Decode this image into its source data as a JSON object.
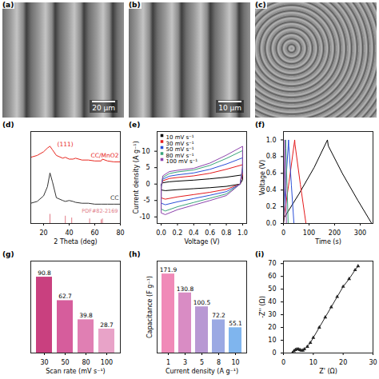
{
  "chart_data": [
    {
      "type": "image",
      "title": "(a)",
      "annotations": [
        {
          "text": "20 μm"
        }
      ]
    },
    {
      "type": "image",
      "title": "(b)",
      "annotations": [
        {
          "text": "10 μm"
        }
      ]
    },
    {
      "type": "image",
      "title": "(c)"
    },
    {
      "type": "line",
      "title": "(d)",
      "x_label": "2 Theta (deg)",
      "xlim": [
        10,
        80
      ],
      "xticks": [
        20,
        40,
        60,
        80
      ],
      "ylim": [
        0,
        100
      ],
      "tick_labels": "x",
      "series": [
        {
          "name": "CC/MnO2",
          "color": "#e8271f",
          "x": [
            10,
            15,
            20,
            23,
            25,
            27,
            30,
            35,
            37,
            40,
            43,
            45,
            50,
            55,
            60,
            65,
            66,
            70,
            75,
            80
          ],
          "values": [
            72,
            74,
            78,
            82,
            84,
            80,
            74,
            71,
            72,
            70,
            70,
            71,
            69,
            69,
            68,
            68,
            70,
            68,
            67,
            67
          ]
        },
        {
          "name": "CC",
          "color": "#333333",
          "x": [
            10,
            15,
            20,
            23,
            25,
            27,
            30,
            35,
            37,
            40,
            43,
            45,
            50,
            55,
            60,
            65,
            66,
            70,
            75,
            80
          ],
          "values": [
            22,
            24,
            30,
            40,
            55,
            45,
            28,
            25,
            24,
            25,
            24,
            23,
            22,
            22,
            21,
            21,
            21,
            21,
            21,
            21
          ]
        }
      ],
      "reference": {
        "name": "PDF#82-2169",
        "color": "#e07a86",
        "x": [
          25,
          37,
          42,
          56,
          65,
          66
        ],
        "values": [
          10,
          8,
          6,
          5,
          4,
          5
        ]
      },
      "annotations": [
        {
          "text": "(111)",
          "x": 37,
          "y": 86,
          "color": "#e8271f"
        }
      ]
    },
    {
      "type": "line",
      "title": "(e)",
      "x_label": "Voltage (V)",
      "y_label": "Current density (A g⁻¹)",
      "xlim": [
        -0.05,
        1.05
      ],
      "xticks": [
        {
          "value": 0,
          "label": "0.0"
        },
        {
          "value": 0.2,
          "label": "0.2"
        },
        {
          "value": 0.4,
          "label": "0.4"
        },
        {
          "value": 0.6,
          "label": "0.6"
        },
        {
          "value": 0.8,
          "label": "0.8"
        },
        {
          "value": 1,
          "label": "1.0"
        }
      ],
      "ylim": [
        -12,
        16
      ],
      "yticks": [
        -10,
        -5,
        0,
        5,
        10
      ],
      "legend": "top-left",
      "series": [
        {
          "name": "10 mV s⁻¹",
          "color": "#000000",
          "x": [
            0,
            0.02,
            0.1,
            0.2,
            0.4,
            0.6,
            0.8,
            1.0,
            1.0,
            0.97,
            0.8,
            0.6,
            0.4,
            0.2,
            0.05,
            0,
            0
          ],
          "values": [
            -0.2,
            0.4,
            0.7,
            0.9,
            1.2,
            1.6,
            2.1,
            2.8,
            1.3,
            0,
            -0.7,
            -1.1,
            -1.4,
            -1.7,
            -2.0,
            -1.8,
            -0.2
          ]
        },
        {
          "name": "30 mV s⁻¹",
          "color": "#e41a1c",
          "x": [
            0,
            0.02,
            0.1,
            0.2,
            0.4,
            0.6,
            0.8,
            1.0,
            1.0,
            0.97,
            0.8,
            0.6,
            0.4,
            0.2,
            0.05,
            0,
            0
          ],
          "values": [
            -0.4,
            1.0,
            1.7,
            2.0,
            2.5,
            3.3,
            4.5,
            5.9,
            2.8,
            0,
            -1.6,
            -2.5,
            -3.2,
            -3.9,
            -4.6,
            -4.2,
            -0.4
          ]
        },
        {
          "name": "50 mV s⁻¹",
          "color": "#2b4fd8",
          "x": [
            0,
            0.02,
            0.1,
            0.2,
            0.4,
            0.6,
            0.8,
            1.0,
            1.0,
            0.97,
            0.8,
            0.6,
            0.4,
            0.2,
            0.05,
            0,
            0
          ],
          "values": [
            -0.6,
            1.5,
            2.4,
            2.8,
            3.4,
            4.5,
            6.1,
            8.0,
            3.8,
            0,
            -2.3,
            -3.4,
            -4.4,
            -5.4,
            -6.3,
            -5.8,
            -0.6
          ]
        },
        {
          "name": "80 mV s⁻¹",
          "color": "#3aa57a",
          "x": [
            0,
            0.02,
            0.1,
            0.2,
            0.4,
            0.6,
            0.8,
            1.0,
            1.0,
            0.97,
            0.8,
            0.6,
            0.4,
            0.2,
            0.05,
            0,
            0
          ],
          "values": [
            -0.8,
            2.0,
            3.2,
            3.7,
            4.3,
            5.7,
            7.8,
            10.2,
            4.8,
            0,
            -3.0,
            -4.3,
            -5.6,
            -6.9,
            -8.2,
            -7.6,
            -0.8
          ]
        },
        {
          "name": "100 mV s⁻¹",
          "color": "#8e44ad",
          "x": [
            0,
            0.02,
            0.1,
            0.2,
            0.4,
            0.6,
            0.8,
            1.0,
            1.0,
            0.97,
            0.8,
            0.6,
            0.4,
            0.2,
            0.05,
            0,
            0
          ],
          "values": [
            -1,
            2.5,
            3.8,
            4.2,
            4.8,
            6.4,
            8.8,
            11.5,
            5.5,
            0,
            -3.5,
            -5.0,
            -6.4,
            -7.8,
            -9.3,
            -8.8,
            -1
          ]
        }
      ]
    },
    {
      "type": "line",
      "title": "(f)",
      "x_label": "Time (s)",
      "y_label": "Voltage (V)",
      "xlim": [
        0,
        350
      ],
      "xticks": [
        0,
        100,
        200,
        300
      ],
      "ylim": [
        0,
        1.1
      ],
      "yticks": [
        {
          "value": 0,
          "label": "0.0"
        },
        {
          "value": 0.2,
          "label": "0.2"
        },
        {
          "value": 0.4,
          "label": "0.4"
        },
        {
          "value": 0.6,
          "label": "0.6"
        },
        {
          "value": 0.8,
          "label": "0.8"
        },
        {
          "value": 1,
          "label": "1.0"
        }
      ],
      "series": [
        {
          "color": "#000000",
          "x": [
            0,
            3,
            60,
            120,
            172,
            175,
            230,
            290,
            345
          ],
          "values": [
            0,
            0.07,
            0.35,
            0.67,
            1.0,
            0.93,
            0.6,
            0.28,
            0
          ]
        },
        {
          "color": "#e41a1c",
          "x": [
            0,
            1,
            22,
            44,
            45,
            66,
            88
          ],
          "values": [
            0,
            0.05,
            0.5,
            1.0,
            0.95,
            0.47,
            0
          ]
        },
        {
          "color": "#2b4fd8",
          "x": [
            0,
            0.5,
            10,
            20,
            21,
            31,
            41
          ],
          "values": [
            0,
            0.06,
            0.52,
            1.0,
            0.93,
            0.46,
            0
          ]
        },
        {
          "color": "#3aa57a",
          "x": [
            0,
            0.3,
            4.5,
            9,
            9.5,
            14,
            18.5
          ],
          "values": [
            0,
            0.07,
            0.52,
            1.0,
            0.9,
            0.45,
            0
          ]
        },
        {
          "color": "#8e44ad",
          "x": [
            0,
            0.2,
            3,
            5.6,
            6,
            9,
            11.6
          ],
          "values": [
            0,
            0.08,
            0.53,
            1.0,
            0.9,
            0.42,
            0
          ]
        }
      ]
    },
    {
      "type": "bar",
      "title": "(g)",
      "x_label": "Scan rate (mV s⁻¹)",
      "categories": [
        "30",
        "50",
        "80",
        "100"
      ],
      "values": [
        90.8,
        62.7,
        39.8,
        28.7
      ],
      "colors": [
        "#c9407f",
        "#d65d9c",
        "#e07fb3",
        "#e8a3c8"
      ],
      "ylim": [
        0,
        110
      ],
      "tick_labels": "x",
      "data_labels": true
    },
    {
      "type": "bar",
      "title": "(h)",
      "x_label": "Current density (A g⁻¹)",
      "y_label": "Capacitance (F g⁻¹)",
      "categories": [
        "1",
        "3",
        "5",
        "8",
        "10"
      ],
      "values": [
        171.9,
        130.8,
        100.5,
        72.2,
        55.1
      ],
      "colors": [
        "#f08ab8",
        "#d98cc4",
        "#b898d3",
        "#9ba9e3",
        "#7fb5ee"
      ],
      "ylim": [
        0,
        200
      ],
      "tick_labels": "x",
      "data_labels": true
    },
    {
      "type": "line",
      "title": "(i)",
      "x_label": "Z' (Ω)",
      "y_label": "-Z'' (Ω)",
      "xlim": [
        0,
        30
      ],
      "xticks": [
        0,
        10,
        20,
        30
      ],
      "ylim": [
        0,
        72
      ],
      "yticks": [
        0,
        10,
        20,
        30,
        40,
        50,
        60,
        70
      ],
      "marker": "triangle",
      "series": [
        {
          "color": "#222222",
          "x": [
            3,
            3.5,
            4,
            4.5,
            5,
            5.5,
            6,
            6.5,
            7,
            8,
            9,
            10,
            12,
            14,
            16,
            18,
            20,
            22,
            24,
            25
          ],
          "values": [
            0,
            1.5,
            2.5,
            3,
            3,
            2.5,
            2,
            2,
            3,
            5,
            8,
            12,
            20,
            28,
            36,
            44,
            52,
            58,
            65,
            68
          ]
        }
      ]
    }
  ]
}
